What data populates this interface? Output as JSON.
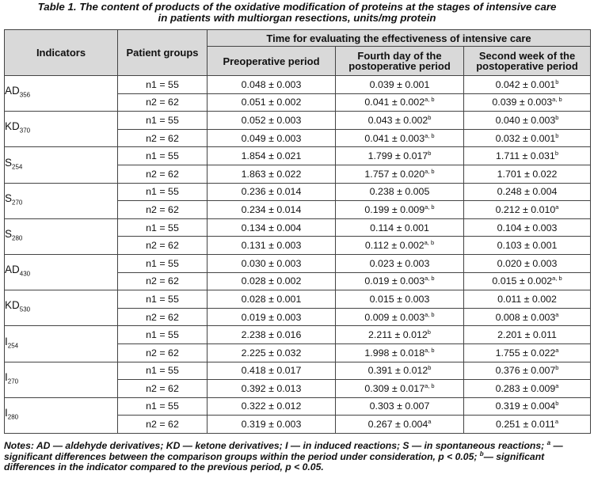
{
  "caption": {
    "line1": "Table 1.  The content of products of the oxidative modification of proteins at the stages of intensive care",
    "line2": "in patients with multiorgan resections, units/mg protein"
  },
  "headers": {
    "indicators": "Indicators",
    "patient_groups": "Patient groups",
    "time": "Time for evaluating the effectiveness of intensive care",
    "preop": "Preoperative period",
    "fourth_day": "Fourth day of the postoperative period",
    "second_week": "Second week of the postoperative period"
  },
  "rows": [
    {
      "base": "AD",
      "sub": "356",
      "groups": [
        {
          "group": "n1 = 55",
          "pre": "0.048 ± 0.003",
          "pre_sup": "",
          "d4": "0.039 ± 0.001",
          "d4_sup": "",
          "w2": "0.042 ± 0.001",
          "w2_sup": "b"
        },
        {
          "group": "n2 = 62",
          "pre": "0.051 ± 0.002",
          "pre_sup": "",
          "d4": "0.041 ± 0.002",
          "d4_sup": "a, b",
          "w2": "0.039 ± 0.003",
          "w2_sup": "a, b"
        }
      ]
    },
    {
      "base": "KD",
      "sub": "370",
      "groups": [
        {
          "group": "n1 = 55",
          "pre": "0.052 ± 0.003",
          "pre_sup": "",
          "d4": "0.043 ± 0.002",
          "d4_sup": "b",
          "w2": "0.040 ± 0.003",
          "w2_sup": "b"
        },
        {
          "group": "n2 = 62",
          "pre": "0.049 ± 0.003",
          "pre_sup": "",
          "d4": "0.041 ± 0.003",
          "d4_sup": "a, b",
          "w2": "0.032 ± 0.001",
          "w2_sup": "b"
        }
      ]
    },
    {
      "base": "S",
      "sub": "254",
      "groups": [
        {
          "group": "n1 = 55",
          "pre": "1.854 ± 0.021",
          "pre_sup": "",
          "d4": "1.799 ± 0.017",
          "d4_sup": "b",
          "w2": "1.711 ± 0.031",
          "w2_sup": "b"
        },
        {
          "group": "n2 = 62",
          "pre": "1.863 ± 0.022",
          "pre_sup": "",
          "d4": "1.757 ± 0.020",
          "d4_sup": "a, b",
          "w2": "1.701 ± 0.022",
          "w2_sup": ""
        }
      ]
    },
    {
      "base": "S",
      "sub": "270",
      "groups": [
        {
          "group": "n1 = 55",
          "pre": "0.236 ± 0.014",
          "pre_sup": "",
          "d4": "0.238 ± 0.005",
          "d4_sup": "",
          "w2": "0.248 ± 0.004",
          "w2_sup": ""
        },
        {
          "group": "n2 = 62",
          "pre": "0.234 ± 0.014",
          "pre_sup": "",
          "d4": "0.199 ± 0.009",
          "d4_sup": "a, b",
          "w2": "0.212 ± 0.010",
          "w2_sup": "a"
        }
      ]
    },
    {
      "base": "S",
      "sub": "280",
      "groups": [
        {
          "group": "n1 = 55",
          "pre": "0.134 ± 0.004",
          "pre_sup": "",
          "d4": "0.114 ± 0.001",
          "d4_sup": "",
          "w2": "0.104 ± 0.003",
          "w2_sup": ""
        },
        {
          "group": "n2 = 62",
          "pre": "0.131 ± 0.003",
          "pre_sup": "",
          "d4": "0.112 ± 0.002",
          "d4_sup": "a, b",
          "w2": "0.103 ± 0.001",
          "w2_sup": ""
        }
      ]
    },
    {
      "base": "AD",
      "sub": "430",
      "groups": [
        {
          "group": "n1 = 55",
          "pre": "0.030 ± 0.003",
          "pre_sup": "",
          "d4": "0.023 ± 0.003",
          "d4_sup": "",
          "w2": "0.020 ± 0.003",
          "w2_sup": ""
        },
        {
          "group": "n2 = 62",
          "pre": "0.028 ± 0.002",
          "pre_sup": "",
          "d4": "0.019 ± 0.003",
          "d4_sup": "a, b",
          "w2": "0.015 ± 0.002",
          "w2_sup": "a, b"
        }
      ]
    },
    {
      "base": "KD",
      "sub": "530",
      "groups": [
        {
          "group": "n1 = 55",
          "pre": "0.028 ± 0.001",
          "pre_sup": "",
          "d4": "0.015 ± 0.003",
          "d4_sup": "",
          "w2": "0.011 ± 0.002",
          "w2_sup": ""
        },
        {
          "group": "n2 = 62",
          "pre": "0.019 ± 0.003",
          "pre_sup": "",
          "d4": "0.009 ± 0.003",
          "d4_sup": "a, b",
          "w2": "0.008 ± 0.003",
          "w2_sup": "a"
        }
      ]
    },
    {
      "base": "I",
      "sub": "254",
      "groups": [
        {
          "group": "n1 = 55",
          "pre": "2.238 ± 0.016",
          "pre_sup": "",
          "d4": "2.211 ± 0.012",
          "d4_sup": "b",
          "w2": "2.201 ± 0.011",
          "w2_sup": ""
        },
        {
          "group": "n2 = 62",
          "pre": "2.225 ± 0.032",
          "pre_sup": "",
          "d4": "1.998 ± 0.018",
          "d4_sup": "a, b",
          "w2": "1.755 ± 0.022",
          "w2_sup": "a"
        }
      ]
    },
    {
      "base": "I",
      "sub": "270",
      "groups": [
        {
          "group": "n1 = 55",
          "pre": "0.418 ± 0.017",
          "pre_sup": "",
          "d4": "0.391 ± 0.012",
          "d4_sup": "b",
          "w2": "0.376 ± 0.007",
          "w2_sup": "b"
        },
        {
          "group": "n2 = 62",
          "pre": "0.392 ± 0.013",
          "pre_sup": "",
          "d4": "0.309 ± 0.017",
          "d4_sup": "a, b",
          "w2": "0.283 ± 0.009",
          "w2_sup": "a"
        }
      ]
    },
    {
      "base": "I",
      "sub": "280",
      "groups": [
        {
          "group": "n1 = 55",
          "pre": "0.322 ± 0.012",
          "pre_sup": "",
          "d4": "0.303 ± 0.007",
          "d4_sup": "",
          "w2": "0.319 ± 0.004",
          "w2_sup": "b"
        },
        {
          "group": "n2 = 62",
          "pre": "0.319 ± 0.003",
          "pre_sup": "",
          "d4": "0.267 ± 0.004",
          "d4_sup": "a",
          "w2": "0.251 ± 0.011",
          "w2_sup": "a"
        }
      ]
    }
  ],
  "notes": {
    "p1": "Notes: AD — aldehyde derivatives; KD — ketone derivatives; I — in induced reactions; S — in spontaneous reactions; ",
    "sup_a": "a",
    "p2": " — significant differences between the comparison groups within the period under consideration, p < 0.05; ",
    "sup_b": "b",
    "p3": "— significant differences in the indicator compared to the previous period, p < 0.05."
  }
}
